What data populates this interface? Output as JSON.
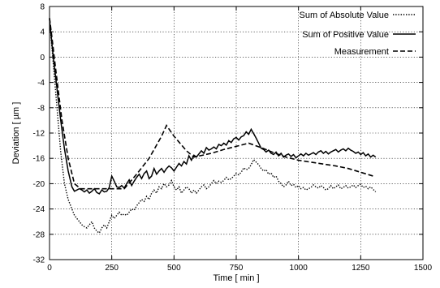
{
  "chart_data": {
    "type": "line",
    "title": "",
    "xlabel": "Time  [ min ]",
    "ylabel": "Deviation  [ µm ]",
    "xlim": [
      0,
      1500
    ],
    "ylim": [
      -32,
      8
    ],
    "xticks": [
      0,
      250,
      500,
      750,
      1000,
      1250,
      1500
    ],
    "yticks": [
      8,
      4,
      0,
      -4,
      -8,
      -12,
      -16,
      -20,
      -24,
      -28,
      -32
    ],
    "grid": true,
    "legend_position": "top-right",
    "series": [
      {
        "name": "Sum of Absolute Value",
        "style": "dotted",
        "x": [
          0,
          15,
          30,
          45,
          60,
          75,
          90,
          100,
          110,
          120,
          130,
          140,
          150,
          160,
          170,
          180,
          190,
          200,
          210,
          220,
          230,
          240,
          250,
          260,
          270,
          280,
          290,
          300,
          310,
          320,
          330,
          340,
          350,
          360,
          370,
          380,
          390,
          400,
          410,
          420,
          430,
          440,
          450,
          460,
          470,
          480,
          490,
          500,
          510,
          520,
          530,
          540,
          550,
          560,
          570,
          580,
          590,
          600,
          610,
          620,
          630,
          640,
          650,
          660,
          670,
          680,
          690,
          700,
          710,
          720,
          730,
          740,
          750,
          760,
          770,
          780,
          790,
          800,
          810,
          820,
          830,
          840,
          850,
          860,
          870,
          880,
          890,
          900,
          910,
          920,
          930,
          940,
          950,
          960,
          970,
          980,
          990,
          1000,
          1010,
          1020,
          1030,
          1040,
          1050,
          1060,
          1070,
          1080,
          1090,
          1100,
          1110,
          1120,
          1130,
          1140,
          1150,
          1160,
          1170,
          1180,
          1190,
          1200,
          1210,
          1220,
          1230,
          1240,
          1250,
          1260,
          1270,
          1280,
          1290,
          1300,
          1310
        ],
        "y": [
          6,
          -1,
          -8,
          -15,
          -20,
          -22.5,
          -24,
          -25,
          -25.5,
          -26,
          -26.5,
          -26.8,
          -27,
          -26.5,
          -26,
          -27,
          -27.5,
          -27.8,
          -27,
          -26.5,
          -27,
          -26,
          -25,
          -25.5,
          -25,
          -24.5,
          -25,
          -24.8,
          -25,
          -24.5,
          -24,
          -24.2,
          -23.5,
          -23,
          -22.5,
          -22.8,
          -22,
          -22.5,
          -21.5,
          -21,
          -21.5,
          -20.5,
          -20.8,
          -20,
          -20.5,
          -20.2,
          -19.5,
          -20.5,
          -21,
          -20.5,
          -21.5,
          -21,
          -20.5,
          -20.8,
          -21.5,
          -21,
          -21.5,
          -21,
          -20.5,
          -20.2,
          -20.8,
          -20.5,
          -20,
          -19.5,
          -20,
          -19.6,
          -19.8,
          -19.5,
          -19,
          -19.4,
          -19.2,
          -18.8,
          -18.4,
          -18.6,
          -18.2,
          -17.5,
          -17.8,
          -17.6,
          -17,
          -16.2,
          -16.6,
          -17,
          -17.6,
          -18,
          -17.8,
          -18.5,
          -18.3,
          -19,
          -18.8,
          -19.6,
          -20,
          -20.5,
          -20.2,
          -19.6,
          -20.3,
          -20.1,
          -20.6,
          -20.3,
          -20.8,
          -20.6,
          -21,
          -20.8,
          -20.6,
          -20.2,
          -20.5,
          -20.7,
          -20.3,
          -20.6,
          -21,
          -20.8,
          -20.3,
          -20.8,
          -20.5,
          -20.2,
          -20.8,
          -20.6,
          -20.3,
          -20.7,
          -20.5,
          -20.2,
          -20.6,
          -20.3,
          -20.1,
          -20.6,
          -20.4,
          -20.8,
          -20.5,
          -20.9,
          -21.3
        ]
      },
      {
        "name": "Sum of Positive Value",
        "style": "solid",
        "x": [
          0,
          15,
          30,
          45,
          60,
          75,
          90,
          100,
          110,
          120,
          130,
          140,
          150,
          160,
          170,
          180,
          190,
          200,
          210,
          220,
          230,
          240,
          250,
          260,
          270,
          280,
          290,
          300,
          310,
          320,
          330,
          340,
          350,
          360,
          370,
          380,
          390,
          400,
          410,
          420,
          430,
          440,
          450,
          460,
          470,
          480,
          490,
          500,
          510,
          520,
          530,
          540,
          550,
          560,
          570,
          580,
          590,
          600,
          610,
          620,
          630,
          640,
          650,
          660,
          670,
          680,
          690,
          700,
          710,
          720,
          730,
          740,
          750,
          760,
          770,
          780,
          790,
          800,
          810,
          820,
          830,
          840,
          850,
          860,
          870,
          880,
          890,
          900,
          910,
          920,
          930,
          940,
          950,
          960,
          970,
          980,
          990,
          1000,
          1010,
          1020,
          1030,
          1040,
          1050,
          1060,
          1070,
          1080,
          1090,
          1100,
          1110,
          1120,
          1130,
          1140,
          1150,
          1160,
          1170,
          1180,
          1190,
          1200,
          1210,
          1220,
          1230,
          1240,
          1250,
          1260,
          1270,
          1280,
          1290,
          1300,
          1310
        ],
        "y": [
          6,
          0,
          -5,
          -10,
          -14.5,
          -18,
          -20.5,
          -21.2,
          -21,
          -20.8,
          -21,
          -21.3,
          -21,
          -21.5,
          -21.2,
          -20.8,
          -21.4,
          -21.6,
          -21,
          -21.3,
          -21.2,
          -20.6,
          -18.8,
          -19.6,
          -20.5,
          -20.6,
          -20.3,
          -20.7,
          -20,
          -19.4,
          -20.3,
          -19.6,
          -19,
          -18.5,
          -19.2,
          -18.4,
          -18,
          -19.2,
          -18.8,
          -17.6,
          -18.5,
          -18,
          -17.6,
          -18.2,
          -17.6,
          -17.2,
          -17.5,
          -18,
          -17.4,
          -16.8,
          -17.2,
          -16.5,
          -16.9,
          -15.6,
          -16.3,
          -15.5,
          -15.8,
          -15.3,
          -14.8,
          -15.2,
          -14.3,
          -14.7,
          -14.5,
          -14.2,
          -14.5,
          -13.8,
          -14,
          -13.6,
          -13.9,
          -13.2,
          -13.5,
          -12.9,
          -12.7,
          -13.1,
          -12.6,
          -12.4,
          -11.8,
          -12.2,
          -11.4,
          -12.1,
          -12.8,
          -13.6,
          -14.4,
          -14.6,
          -15,
          -14.7,
          -15.2,
          -15.4,
          -15,
          -15.6,
          -15.2,
          -15.8,
          -15.5,
          -15.3,
          -15.7,
          -15.4,
          -15.9,
          -15.6,
          -15.3,
          -15.6,
          -15.2,
          -15.5,
          -15.3,
          -15.1,
          -15.4,
          -15,
          -14.8,
          -15.2,
          -14.9,
          -15.3,
          -15,
          -14.8,
          -14.6,
          -15,
          -14.7,
          -14.5,
          -14.8,
          -14.4,
          -14.7,
          -14.9,
          -15.2,
          -15,
          -15.4,
          -15.1,
          -15.6,
          -15.3,
          -15.8,
          -15.5,
          -15.8
        ]
      },
      {
        "name": "Measurement",
        "style": "dashed",
        "x": [
          0,
          10,
          25,
          50,
          75,
          100,
          125,
          150,
          200,
          250,
          300,
          350,
          400,
          450,
          470,
          500,
          550,
          580,
          650,
          700,
          750,
          800,
          850,
          900,
          950,
          1000,
          1050,
          1100,
          1150,
          1200,
          1250,
          1300
        ],
        "y": [
          6.2,
          3,
          -2,
          -10,
          -16,
          -20,
          -20.8,
          -20.8,
          -20.8,
          -20.8,
          -20.8,
          -18.5,
          -16,
          -12.5,
          -10.8,
          -12.5,
          -14.8,
          -15.8,
          -15.2,
          -14.6,
          -14.1,
          -13.6,
          -14.3,
          -15.1,
          -15.8,
          -16.3,
          -16.6,
          -16.9,
          -17.2,
          -17.6,
          -18.2,
          -18.8
        ]
      }
    ]
  }
}
